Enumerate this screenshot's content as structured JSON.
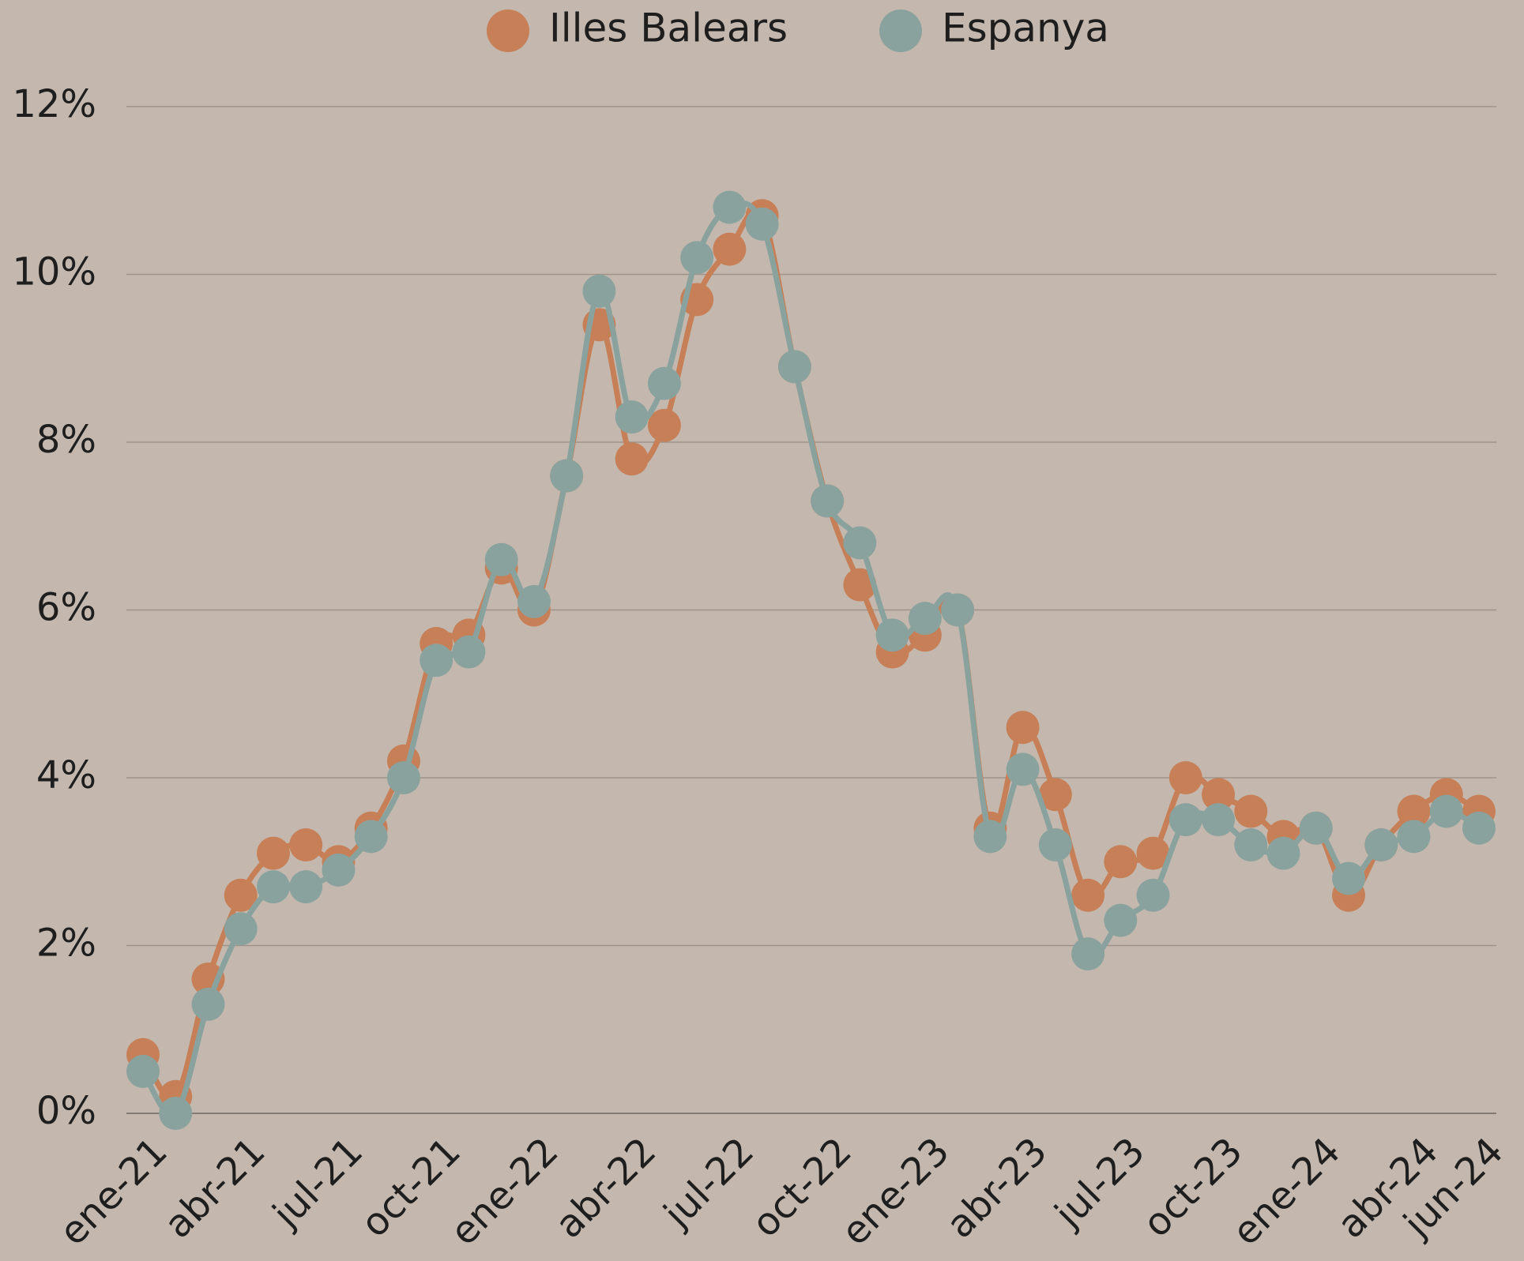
{
  "chart_data": {
    "type": "line",
    "categories": [
      "ene-21",
      null,
      null,
      "abr-21",
      null,
      null,
      "jul-21",
      null,
      null,
      "oct-21",
      null,
      null,
      "ene-22",
      null,
      null,
      "abr-22",
      null,
      null,
      "jul-22",
      null,
      null,
      "oct-22",
      null,
      null,
      "ene-23",
      null,
      null,
      "abr-23",
      null,
      null,
      "jul-23",
      null,
      null,
      "oct-23",
      null,
      null,
      "ene-24",
      null,
      null,
      "abr-24",
      null,
      "jun-24"
    ],
    "series": [
      {
        "name": "Illes Balears",
        "color": "#c67f56",
        "values": [
          0.7,
          0.2,
          1.6,
          2.6,
          3.1,
          3.2,
          3.0,
          3.4,
          4.2,
          5.6,
          5.7,
          6.5,
          6.0,
          7.6,
          9.4,
          7.8,
          8.2,
          9.7,
          10.3,
          10.7,
          8.9,
          7.3,
          6.3,
          5.5,
          5.7,
          6.0,
          3.4,
          4.6,
          3.8,
          2.6,
          3.0,
          3.1,
          4.0,
          3.8,
          3.6,
          3.3,
          3.4,
          2.6,
          3.2,
          3.6,
          3.8,
          3.6
        ]
      },
      {
        "name": "Espanya",
        "color": "#8aa29e",
        "values": [
          0.5,
          0.0,
          1.3,
          2.2,
          2.7,
          2.7,
          2.9,
          3.3,
          4.0,
          5.4,
          5.5,
          6.6,
          6.1,
          7.6,
          9.8,
          8.3,
          8.7,
          10.2,
          10.8,
          10.6,
          8.9,
          7.3,
          6.8,
          5.7,
          5.9,
          6.0,
          3.3,
          4.1,
          3.2,
          1.9,
          2.3,
          2.6,
          3.5,
          3.5,
          3.2,
          3.1,
          3.4,
          2.8,
          3.2,
          3.3,
          3.6,
          3.4
        ]
      }
    ],
    "ylim": [
      0,
      12
    ],
    "yticks": [
      {
        "value": 0,
        "label": "0%"
      },
      {
        "value": 2,
        "label": "2%"
      },
      {
        "value": 4,
        "label": "4%"
      },
      {
        "value": 6,
        "label": "6%"
      },
      {
        "value": 8,
        "label": "8%"
      },
      {
        "value": 10,
        "label": "10%"
      },
      {
        "value": 12,
        "label": "12%"
      }
    ],
    "grid": true,
    "legend": "top"
  }
}
